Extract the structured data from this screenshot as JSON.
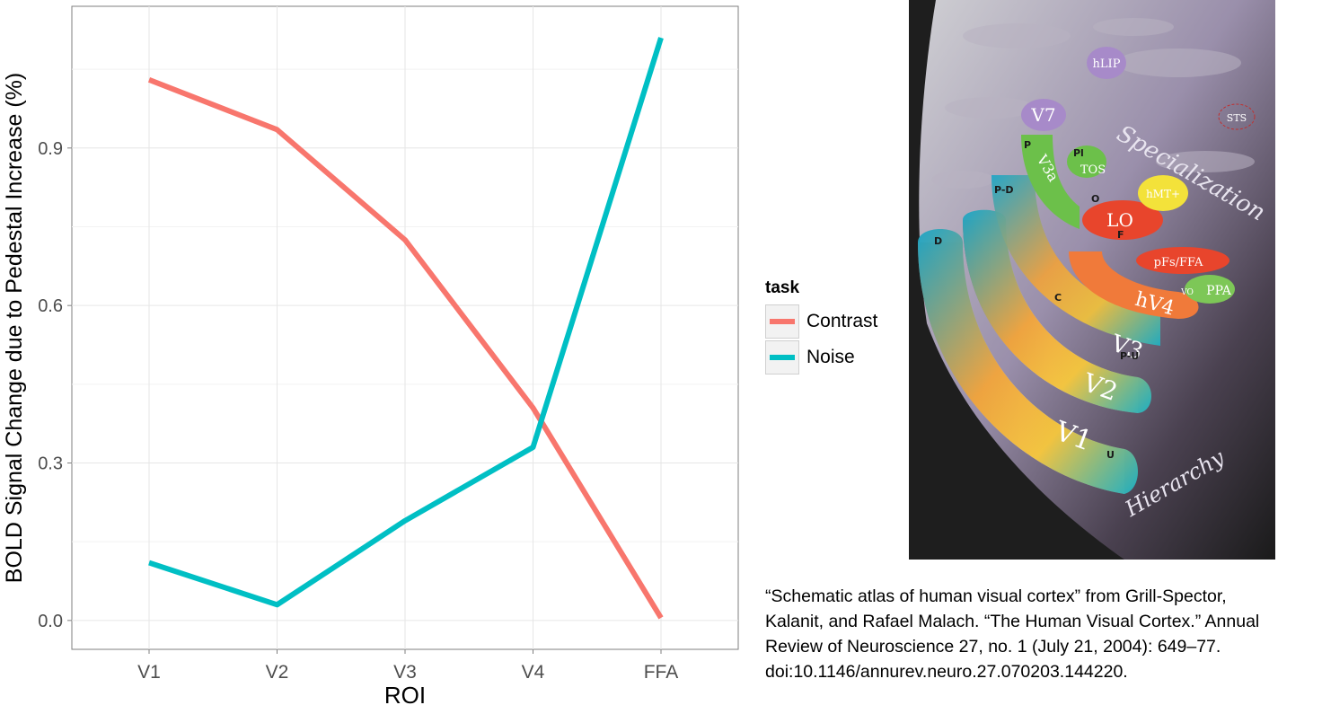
{
  "chart_data": {
    "type": "line",
    "categories": [
      "V1",
      "V2",
      "V3",
      "V4",
      "FFA"
    ],
    "series": [
      {
        "name": "Contrast",
        "color": "#f8766d",
        "values": [
          1.03,
          0.935,
          0.725,
          0.405,
          0.005
        ]
      },
      {
        "name": "Noise",
        "color": "#00bfc4",
        "values": [
          0.11,
          0.03,
          0.19,
          0.33,
          1.11
        ]
      }
    ],
    "xlabel": "ROI",
    "ylabel": "BOLD Signal Change due to Pedestal Increase (%)",
    "ylim": [
      -0.055,
      1.17
    ],
    "yticks": [
      0.0,
      0.3,
      0.6,
      0.9
    ],
    "ytick_labels": [
      "0.0",
      "0.3",
      "0.6",
      "0.9"
    ],
    "grid": true,
    "legend_title": "task",
    "legend_position": "right"
  },
  "atlas": {
    "regions": [
      "hLIP",
      "V7",
      "STS",
      "V3a",
      "TOS",
      "LO",
      "hMT+",
      "pFs/FFA",
      "hV4",
      "V3",
      "V2",
      "V1",
      "PPA",
      "VO"
    ],
    "small_labels": [
      "P",
      "Pl",
      "O",
      "F",
      "C",
      "P-D",
      "P-U",
      "D",
      "U"
    ],
    "axis_words": [
      "Specialization",
      "Hierarchy"
    ]
  },
  "caption_lines": [
    "“Schematic atlas of human visual cortex” from Grill-Spector,",
    "Kalanit, and Rafael Malach. “The Human Visual Cortex.” Annual",
    "Review of Neuroscience 27, no. 1 (July 21, 2004): 649–77.",
    "doi:10.1146/annurev.neuro.27.070203.144220."
  ]
}
